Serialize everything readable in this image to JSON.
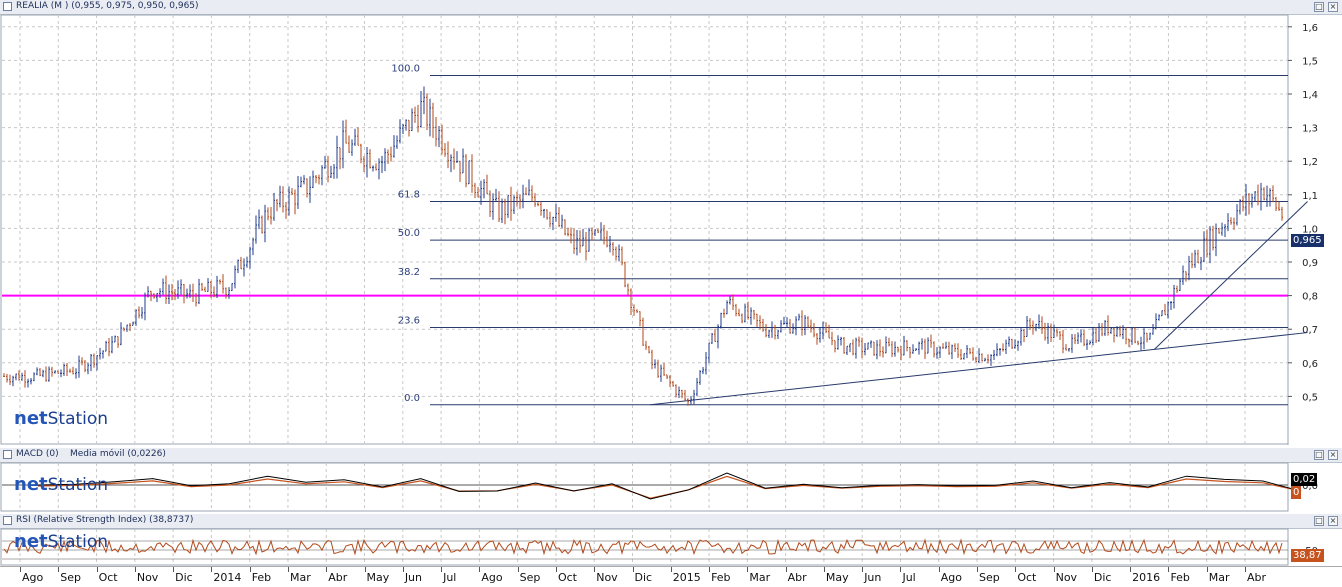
{
  "colors": {
    "accent_line": "#ff00ff",
    "price_up": "#1f3b8f",
    "price_down": "#b24a1c",
    "fib_line": "#283a6b",
    "grid": "#c8c8c8",
    "badge_bg": "#17306a"
  },
  "icons": [
    "panel-icon",
    "maximize-icon",
    "close-icon"
  ],
  "main_panel": {
    "title": "REALIA (M ) (0,955, 0,975, 0,950, 0,965)",
    "price_badge": "0,965",
    "logo_prefix": "net",
    "logo_suffix": "Station"
  },
  "macd_panel": {
    "title": "MACD (0)",
    "title2": "Media móvil (0,0226)",
    "value_badge1": "0,02",
    "value_badge2": "0",
    "logo_prefix": "net",
    "logo_suffix": "Station"
  },
  "rsi_panel": {
    "title": "RSI (Relative Strength Index) (38,8737)",
    "value_badge": "38,87",
    "logo_prefix": "net",
    "logo_suffix": "Station"
  },
  "chart_data": [
    {
      "type": "candlestick",
      "title": "REALIA (M ) (0,955, 0,975, 0,950, 0,965)",
      "yticks": [
        "1,6",
        "1,5",
        "1,4",
        "1,3",
        "1,2",
        "1,1",
        "1,0",
        "0,9",
        "0,8",
        "0,7",
        "0,6",
        "0,5"
      ],
      "ylim": [
        0.4,
        1.6
      ],
      "fib_levels": [
        {
          "label": "100.0",
          "value": 1.455
        },
        {
          "label": "61.8",
          "value": 1.08
        },
        {
          "label": "50.0",
          "value": 0.965
        },
        {
          "label": "38.2",
          "value": 0.85
        },
        {
          "label": "23.6",
          "value": 0.705
        },
        {
          "label": "0.0",
          "value": 0.475
        }
      ],
      "horizontal_line": 0.8,
      "trendlines": [
        {
          "from": [
            "2014-12-15",
            0.475
          ],
          "to": [
            "2016-05-20",
            0.69
          ]
        },
        {
          "from": [
            "2016-01-20",
            0.64
          ],
          "to": [
            "2016-05-20",
            1.08
          ]
        }
      ],
      "series_close_approx": [
        {
          "date": "2013-08",
          "close": 0.56
        },
        {
          "date": "2013-09",
          "close": 0.58
        },
        {
          "date": "2013-10",
          "close": 0.66
        },
        {
          "date": "2013-11",
          "close": 0.82
        },
        {
          "date": "2013-12",
          "close": 0.8
        },
        {
          "date": "2014-01",
          "close": 0.83
        },
        {
          "date": "2014-02",
          "close": 1.05
        },
        {
          "date": "2014-03",
          "close": 1.12
        },
        {
          "date": "2014-04",
          "close": 1.25
        },
        {
          "date": "2014-05",
          "close": 1.2
        },
        {
          "date": "2014-06",
          "close": 1.36
        },
        {
          "date": "2014-07",
          "close": 1.2
        },
        {
          "date": "2014-08",
          "close": 1.05
        },
        {
          "date": "2014-09",
          "close": 1.1
        },
        {
          "date": "2014-10",
          "close": 0.95
        },
        {
          "date": "2014-11",
          "close": 0.98
        },
        {
          "date": "2014-12",
          "close": 0.6
        },
        {
          "date": "2015-01",
          "close": 0.48
        },
        {
          "date": "2015-02",
          "close": 0.78
        },
        {
          "date": "2015-03",
          "close": 0.7
        },
        {
          "date": "2015-04",
          "close": 0.72
        },
        {
          "date": "2015-05",
          "close": 0.65
        },
        {
          "date": "2015-06",
          "close": 0.64
        },
        {
          "date": "2015-07",
          "close": 0.65
        },
        {
          "date": "2015-08",
          "close": 0.63
        },
        {
          "date": "2015-09",
          "close": 0.62
        },
        {
          "date": "2015-10",
          "close": 0.72
        },
        {
          "date": "2015-11",
          "close": 0.65
        },
        {
          "date": "2015-12",
          "close": 0.71
        },
        {
          "date": "2016-01",
          "close": 0.66
        },
        {
          "date": "2016-02",
          "close": 0.88
        },
        {
          "date": "2016-03",
          "close": 1.02
        },
        {
          "date": "2016-04",
          "close": 1.12
        },
        {
          "date": "2016-05",
          "close": 0.965
        }
      ]
    },
    {
      "type": "line",
      "title": "MACD (0)",
      "yticks": [
        "0,0"
      ]
    },
    {
      "type": "line",
      "title": "RSI (Relative Strength Index) (38,8737)",
      "yticks": [
        "50"
      ]
    }
  ],
  "x_axis": {
    "months": [
      "Ago",
      "Sep",
      "Oct",
      "Nov",
      "Dic",
      "2014",
      "Feb",
      "Mar",
      "Abr",
      "May",
      "Jun",
      "Jul",
      "Ago",
      "Sep",
      "Oct",
      "Nov",
      "Dic",
      "2015",
      "Feb",
      "Mar",
      "Abr",
      "May",
      "Jun",
      "Jul",
      "Ago",
      "Sep",
      "Oct",
      "Nov",
      "Dic",
      "2016",
      "Feb",
      "Mar",
      "Abr"
    ]
  }
}
